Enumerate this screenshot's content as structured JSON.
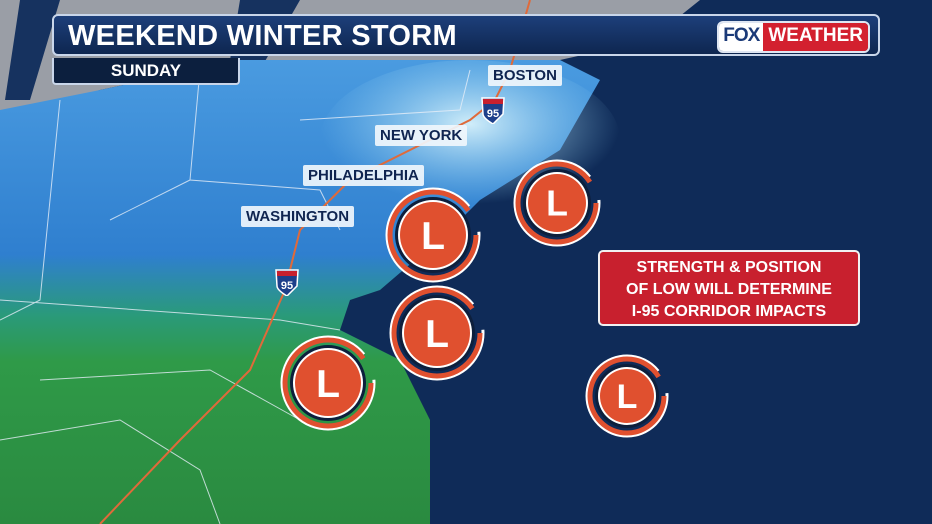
{
  "header": {
    "title": "WEEKEND WINTER STORM",
    "subtitle": "SUNDAY"
  },
  "logo": {
    "part1": "FOX",
    "part2": "WEATHER"
  },
  "cities": [
    {
      "name": "BOSTON"
    },
    {
      "name": "NEW YORK"
    },
    {
      "name": "PHILADELPHIA"
    },
    {
      "name": "WASHINGTON"
    }
  ],
  "highway_shields": [
    {
      "label": "95"
    },
    {
      "label": "95"
    }
  ],
  "callout": {
    "lines": [
      "STRENGTH & POSITION",
      "OF LOW WILL DETERMINE",
      "I-95 CORRIDOR IMPACTS"
    ]
  },
  "low_marker_label": "L",
  "low_count": 5,
  "colors": {
    "ocean": "#0f2b58",
    "snow": "#3e8fd8",
    "rain": "#2e9a4a",
    "low": "#e0502f",
    "callout": "#c8202e",
    "highway": "#e06a3a"
  }
}
